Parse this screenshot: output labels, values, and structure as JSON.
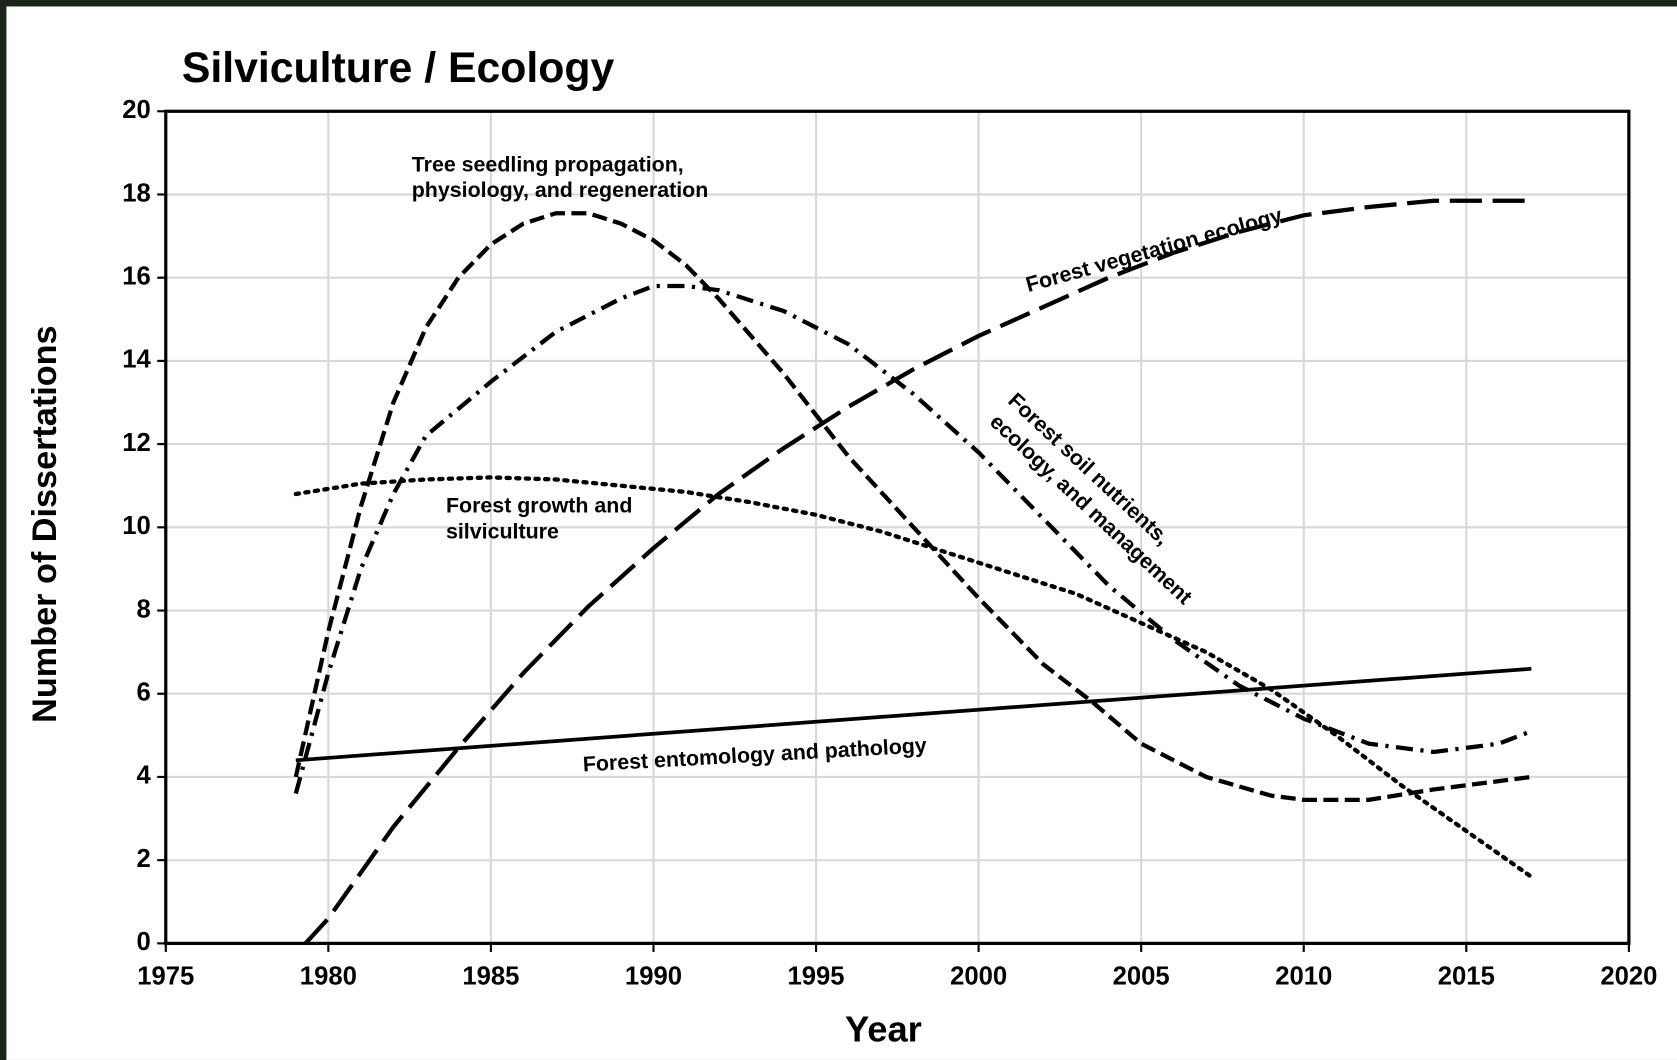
{
  "chart_data": {
    "type": "line",
    "title": "Silviculture / Ecology",
    "x_label": "Year",
    "y_label": "Number of Dissertations",
    "xlim": [
      1975,
      2020
    ],
    "xticks": [
      1975,
      1980,
      1985,
      1990,
      1995,
      2000,
      2005,
      2010,
      2015,
      2020
    ],
    "ylim": [
      0,
      20
    ],
    "yticks": [
      0,
      2,
      4,
      6,
      8,
      10,
      12,
      14,
      16,
      18,
      20
    ],
    "grid": true,
    "series": [
      {
        "label": [
          "Tree seedling propagation,",
          "physiology, and regeneration"
        ],
        "color": "#000000",
        "style": "dashed",
        "x": [
          1979,
          1980,
          1981,
          1982,
          1983,
          1984,
          1985,
          1986,
          1987,
          1988,
          1989,
          1990,
          1991,
          1992,
          1994,
          1996,
          1998,
          2000,
          2002,
          2003.5,
          2005,
          2007,
          2009,
          2010,
          2012,
          2014,
          2016,
          2017
        ],
        "values": [
          4.0,
          7.5,
          10.5,
          13,
          14.8,
          16,
          16.8,
          17.3,
          17.55,
          17.55,
          17.3,
          16.9,
          16.3,
          15.5,
          13.7,
          11.7,
          10.0,
          8.3,
          6.7,
          5.8,
          4.8,
          4.0,
          3.55,
          3.45,
          3.45,
          3.7,
          3.9,
          4.0
        ]
      },
      {
        "label": [
          "Forest soil nutrients,",
          "ecology, and management"
        ],
        "color": "#000000",
        "style": "dashdot",
        "x": [
          1979,
          1980,
          1981,
          1982,
          1983,
          1985,
          1987,
          1989,
          1990,
          1991,
          1992,
          1994,
          1996,
          1998,
          2000,
          2002,
          2004,
          2006,
          2008,
          2010,
          2012,
          2014,
          2016,
          2017
        ],
        "values": [
          3.6,
          6.5,
          9,
          10.8,
          12.2,
          13.5,
          14.7,
          15.5,
          15.8,
          15.8,
          15.7,
          15.2,
          14.4,
          13.2,
          11.8,
          10.2,
          8.6,
          7.3,
          6.2,
          5.4,
          4.8,
          4.6,
          4.8,
          5.1
        ]
      },
      {
        "label": [
          "Forest vegetation ecology"
        ],
        "color": "#000000",
        "style": "longdash",
        "x": [
          1979.3,
          1980,
          1982,
          1984,
          1986,
          1988,
          1990,
          1992,
          1994,
          1996,
          1998,
          2000,
          2002,
          2004,
          2006,
          2008,
          2010,
          2012,
          2014,
          2016,
          2017
        ],
        "values": [
          0,
          0.6,
          2.8,
          4.7,
          6.5,
          8.1,
          9.5,
          10.8,
          11.9,
          12.9,
          13.8,
          14.6,
          15.3,
          16.0,
          16.6,
          17.1,
          17.5,
          17.7,
          17.85,
          17.85,
          17.85
        ]
      },
      {
        "label": [
          "Forest growth and",
          "silviculture"
        ],
        "color": "#000000",
        "style": "dotted",
        "x": [
          1979,
          1981,
          1983,
          1985,
          1987,
          1989,
          1991,
          1993,
          1995,
          1997,
          1999,
          2001,
          2003,
          2005,
          2007,
          2009,
          2011,
          2013,
          2015,
          2017
        ],
        "values": [
          10.8,
          11.05,
          11.15,
          11.2,
          11.15,
          11.0,
          10.85,
          10.6,
          10.3,
          9.9,
          9.4,
          8.9,
          8.4,
          7.7,
          7.0,
          6.1,
          5.0,
          3.8,
          2.7,
          1.6
        ]
      },
      {
        "label": [
          "Forest entomology and pathology"
        ],
        "color": "#000000",
        "style": "solid",
        "x": [
          1979,
          2017
        ],
        "values": [
          4.4,
          6.6
        ]
      }
    ]
  }
}
